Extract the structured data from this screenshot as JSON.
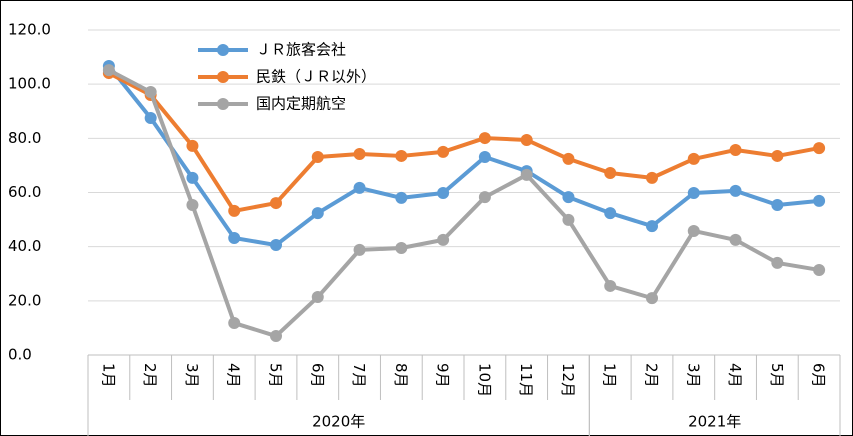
{
  "chart_data": {
    "type": "line",
    "groups": [
      {
        "label": "2020年",
        "categories": [
          "1月",
          "2月",
          "3月",
          "4月",
          "5月",
          "6月",
          "7月",
          "8月",
          "9月",
          "10月",
          "11月",
          "12月"
        ]
      },
      {
        "label": "2021年",
        "categories": [
          "1月",
          "2月",
          "3月",
          "4月",
          "5月",
          "6月"
        ]
      }
    ],
    "series": [
      {
        "name": "ＪＲ旅客会社",
        "color": "#5b9bd5",
        "values": [
          106.7,
          87.5,
          65.4,
          43.2,
          40.6,
          52.4,
          61.7,
          58,
          59.8,
          73.1,
          67.9,
          58.3,
          52.4,
          47.6,
          59.8,
          60.6,
          55.4,
          56.9
        ]
      },
      {
        "name": "民鉄（ＪＲ以外）",
        "color": "#ed7d31",
        "values": [
          104.1,
          96,
          77.2,
          53.2,
          56.1,
          73.1,
          74.2,
          73.5,
          75,
          80.1,
          79.4,
          72.4,
          67.2,
          65.4,
          72.4,
          75.7,
          73.5,
          76.4
        ]
      },
      {
        "name": "国内定期航空",
        "color": "#a5a5a5",
        "values": [
          105.2,
          97.1,
          55.4,
          11.8,
          7,
          21.4,
          38.8,
          39.5,
          42.5,
          58.3,
          66.5,
          49.9,
          25.5,
          21,
          45.8,
          42.5,
          34,
          31.4
        ]
      }
    ],
    "ylim": [
      0,
      120
    ],
    "yticks": [
      {
        "value": 0,
        "label": "0.0"
      },
      {
        "value": 20,
        "label": "20.0"
      },
      {
        "value": 40,
        "label": "40.0"
      },
      {
        "value": 60,
        "label": "60.0"
      },
      {
        "value": 80,
        "label": "80.0"
      },
      {
        "value": 100,
        "label": "100.0"
      },
      {
        "value": 120,
        "label": "120.0"
      }
    ],
    "grid": true,
    "legend": "top-left"
  }
}
